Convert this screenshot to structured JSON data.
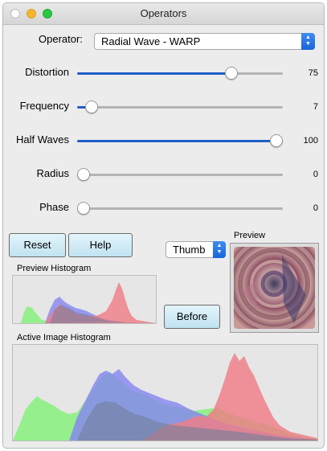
{
  "window": {
    "title": "Operators"
  },
  "operator": {
    "label": "Operator:",
    "value": "Radial Wave - WARP"
  },
  "params": [
    {
      "label": "Distortion",
      "value": "75",
      "level": 0.75
    },
    {
      "label": "Frequency",
      "value": "7",
      "level": 0.07
    },
    {
      "label": "Half Waves",
      "value": "100",
      "level": 1.0
    },
    {
      "label": "Radius",
      "value": "0",
      "level": 0.0
    },
    {
      "label": "Phase",
      "value": "0",
      "level": 0.0
    }
  ],
  "buttons": {
    "reset": "Reset",
    "help": "Help",
    "before": "Before"
  },
  "thumb": {
    "value": "Thumb"
  },
  "preview": {
    "caption": "Preview"
  },
  "preview_histogram": {
    "caption": "Preview Histogram"
  },
  "active_histogram": {
    "caption": "Active Image Histogram"
  },
  "colors": {
    "red": "#f07c86",
    "green": "#86f07c",
    "blue": "#8686f0",
    "overlap": "#6f7f9a",
    "accent": "#1f5fc7"
  }
}
